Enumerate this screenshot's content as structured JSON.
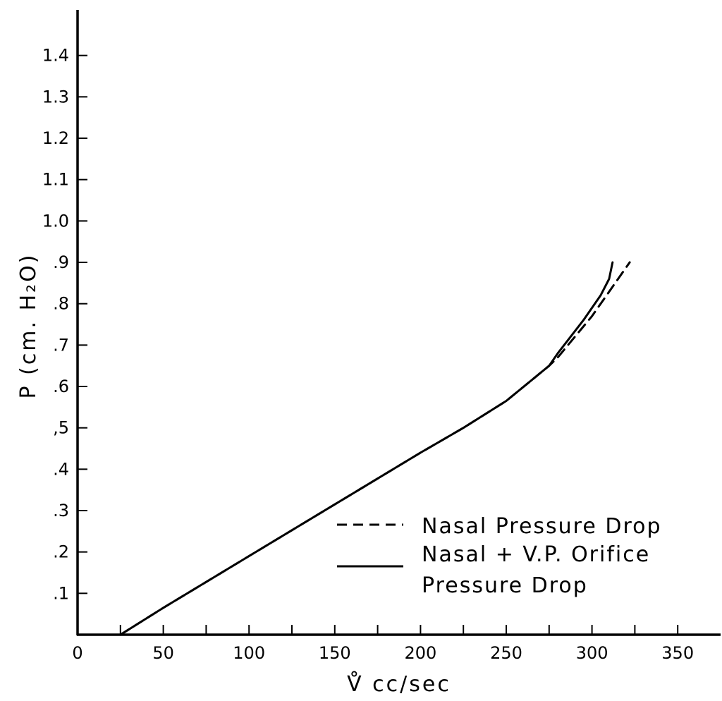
{
  "chart_data": {
    "type": "line",
    "xlabel": "V̊ cc/sec",
    "ylabel": "P (cm. H₂O)",
    "xlim": [
      0,
      375
    ],
    "ylim": [
      0,
      1.5
    ],
    "x_ticks": [
      0,
      25,
      50,
      75,
      100,
      125,
      150,
      175,
      200,
      225,
      250,
      275,
      300,
      325,
      350
    ],
    "x_tick_labels": [
      "0",
      "50",
      "100",
      "150",
      "200",
      "250",
      "300",
      "350"
    ],
    "x_tick_label_values": [
      0,
      50,
      100,
      150,
      200,
      250,
      300,
      350
    ],
    "y_ticks": [
      0.1,
      0.2,
      0.3,
      0.4,
      0.5,
      0.6,
      0.7,
      0.8,
      0.9,
      1.0,
      1.1,
      1.2,
      1.3,
      1.4
    ],
    "y_tick_labels": [
      ".1",
      ".2",
      ".3",
      ".4",
      ",5",
      ".6",
      ".7",
      ".8",
      ".9",
      "1.0",
      "1.1",
      "1.2",
      "1.3",
      "1.4"
    ],
    "grid": false,
    "legend_position": "bottom-right",
    "series": [
      {
        "name": "Nasal Pressure Drop",
        "style": "dashed",
        "color": "#000000",
        "x": [
          25,
          50,
          100,
          150,
          200,
          225,
          250,
          275,
          280,
          300,
          322
        ],
        "y": [
          0.0,
          0.065,
          0.19,
          0.315,
          0.44,
          0.5,
          0.565,
          0.65,
          0.67,
          0.77,
          0.9
        ]
      },
      {
        "name": "Nasal + V.P. Orifice Pressure Drop",
        "style": "solid",
        "color": "#000000",
        "x": [
          25,
          50,
          100,
          150,
          200,
          225,
          250,
          275,
          280,
          295,
          305,
          310,
          312
        ],
        "y": [
          0.0,
          0.065,
          0.19,
          0.315,
          0.44,
          0.5,
          0.565,
          0.65,
          0.68,
          0.76,
          0.82,
          0.86,
          0.9
        ]
      }
    ],
    "legend": [
      {
        "style": "dashed",
        "lines": [
          "Nasal Pressure Drop"
        ]
      },
      {
        "style": "solid",
        "lines": [
          "Nasal + V.P. Orifice",
          "Pressure Drop"
        ]
      }
    ]
  }
}
